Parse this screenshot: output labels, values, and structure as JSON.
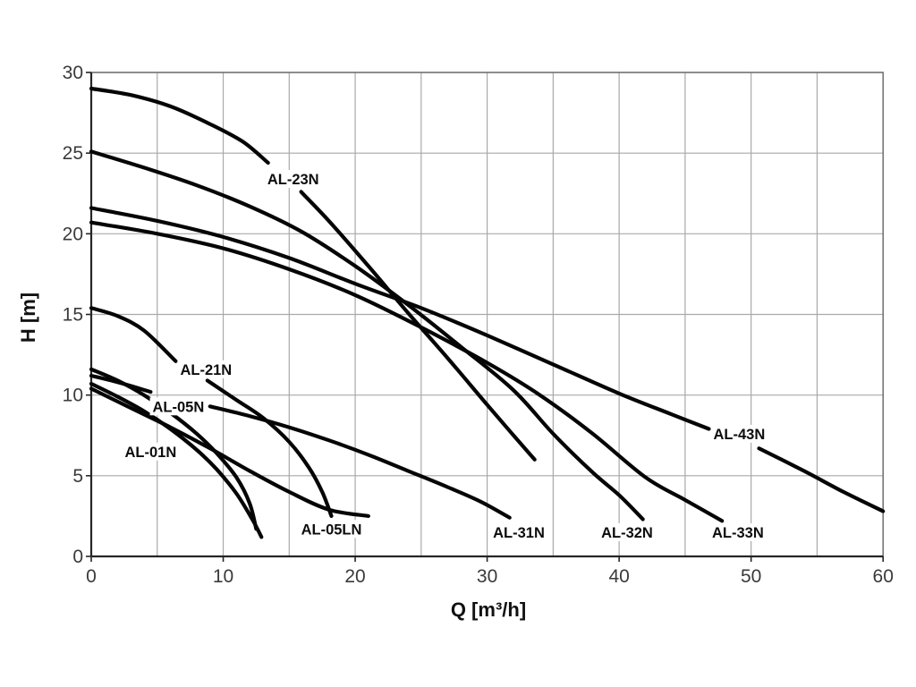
{
  "chart_data": {
    "type": "line",
    "title": "",
    "xlabel": "Q [m³/h]",
    "ylabel": "H [m]",
    "xlim": [
      0,
      60
    ],
    "ylim": [
      0,
      30
    ],
    "x_major_ticks": [
      0,
      10,
      20,
      30,
      40,
      50,
      60
    ],
    "y_major_ticks": [
      0,
      5,
      10,
      15,
      20,
      25,
      30
    ],
    "x_gridline_step": 5,
    "y_gridline_step": 5,
    "grid": "on",
    "legend": "none (inline curve labels)",
    "series": [
      {
        "name": "AL-23N",
        "label_at": {
          "q": 15.3,
          "h": 23.4
        },
        "segments": [
          [
            [
              0,
              29
            ],
            [
              3,
              28.6
            ],
            [
              6,
              27.9
            ],
            [
              9,
              26.8
            ],
            [
              11.5,
              25.7
            ],
            [
              13.4,
              24.4
            ]
          ],
          [
            [
              15.9,
              22.6
            ],
            [
              18,
              20.8
            ],
            [
              21,
              18.0
            ],
            [
              24,
              15.1
            ],
            [
              27,
              12.3
            ],
            [
              30,
              9.4
            ],
            [
              32,
              7.5
            ],
            [
              33.6,
              6.0
            ]
          ]
        ]
      },
      {
        "name": "AL-32N",
        "label_at": {
          "q": 40.6,
          "h": 1.5
        },
        "segments": [
          [
            [
              0,
              25.1
            ],
            [
              4,
              24.1
            ],
            [
              8,
              23.0
            ],
            [
              12,
              21.7
            ],
            [
              16,
              20.1
            ],
            [
              20,
              18.0
            ],
            [
              24,
              15.6
            ],
            [
              28,
              13.0
            ],
            [
              32,
              10.3
            ],
            [
              35,
              7.6
            ],
            [
              38,
              5.2
            ],
            [
              40,
              3.8
            ],
            [
              41.8,
              2.3
            ]
          ]
        ]
      },
      {
        "name": "AL-43N",
        "label_at": {
          "q": 49.1,
          "h": 7.6
        },
        "segments": [
          [
            [
              0,
              21.6
            ],
            [
              5,
              20.8
            ],
            [
              10,
              19.8
            ],
            [
              15,
              18.5
            ],
            [
              20,
              16.9
            ],
            [
              25,
              15.4
            ],
            [
              30,
              13.7
            ],
            [
              35,
              11.9
            ],
            [
              40,
              10.1
            ],
            [
              44,
              8.8
            ],
            [
              46.8,
              7.9
            ]
          ],
          [
            [
              50.6,
              6.7
            ],
            [
              54,
              5.3
            ],
            [
              57,
              4.0
            ],
            [
              60,
              2.8
            ]
          ]
        ]
      },
      {
        "name": "AL-33N",
        "label_at": {
          "q": 49.0,
          "h": 1.5
        },
        "segments": [
          [
            [
              0,
              20.7
            ],
            [
              5,
              20.0
            ],
            [
              10,
              19.1
            ],
            [
              15,
              17.8
            ],
            [
              20,
              16.2
            ],
            [
              25,
              14.2
            ],
            [
              30,
              12.0
            ],
            [
              34,
              10.0
            ],
            [
              38,
              7.6
            ],
            [
              42,
              4.9
            ],
            [
              45,
              3.5
            ],
            [
              47.8,
              2.2
            ]
          ]
        ]
      },
      {
        "name": "AL-21N",
        "label_at": {
          "q": 8.7,
          "h": 11.6
        },
        "segments": [
          [
            [
              0,
              15.4
            ],
            [
              2,
              14.9
            ],
            [
              4,
              14.0
            ],
            [
              6.4,
              12.1
            ]
          ],
          [
            [
              8.8,
              10.9
            ],
            [
              11,
              9.7
            ],
            [
              13,
              8.6
            ],
            [
              15,
              7.1
            ],
            [
              16.5,
              5.5
            ],
            [
              17.5,
              4.0
            ],
            [
              18.2,
              2.5
            ]
          ]
        ]
      },
      {
        "name": "AL-31N",
        "label_at": {
          "q": 32.4,
          "h": 1.5
        },
        "segments": [
          [
            [
              0,
              11.2
            ],
            [
              2,
              10.8
            ],
            [
              4.5,
              10.2
            ]
          ],
          [
            [
              9,
              9.3
            ],
            [
              12,
              8.7
            ],
            [
              15,
              8.0
            ],
            [
              18,
              7.2
            ],
            [
              21,
              6.3
            ],
            [
              24,
              5.3
            ],
            [
              27,
              4.3
            ],
            [
              29.5,
              3.4
            ],
            [
              31.7,
              2.4
            ]
          ]
        ]
      },
      {
        "name": "AL-05N",
        "label_at": {
          "q": 6.6,
          "h": 9.3
        },
        "segments": [
          [
            [
              0,
              11.6
            ],
            [
              2,
              10.9
            ],
            [
              4,
              10.0
            ],
            [
              6,
              8.9
            ],
            [
              8,
              7.6
            ],
            [
              9.5,
              6.4
            ],
            [
              11,
              4.9
            ],
            [
              12,
              3.3
            ],
            [
              12.5,
              1.7
            ]
          ]
        ]
      },
      {
        "name": "AL-01N",
        "label_at": {
          "q": 4.5,
          "h": 6.5
        },
        "segments": [
          [
            [
              0,
              10.7
            ],
            [
              2,
              9.9
            ],
            [
              4,
              9.0
            ],
            [
              6,
              7.9
            ],
            [
              8,
              6.6
            ],
            [
              9.5,
              5.4
            ],
            [
              11,
              3.9
            ],
            [
              12.2,
              2.3
            ],
            [
              12.9,
              1.2
            ]
          ]
        ]
      },
      {
        "name": "AL-05LN",
        "label_at": {
          "q": 18.2,
          "h": 1.7
        },
        "segments": [
          [
            [
              0,
              10.4
            ],
            [
              3,
              9.2
            ],
            [
              6,
              8.0
            ],
            [
              9,
              6.7
            ],
            [
              12,
              5.3
            ],
            [
              15,
              4.0
            ],
            [
              18,
              2.9
            ],
            [
              21,
              2.5
            ]
          ]
        ]
      }
    ]
  },
  "styles": {
    "background": "#ffffff",
    "curve_color": "#050505",
    "grid_color": "#a9a9a9",
    "frame_color": "#6f6f6f",
    "axis_color": "#262626",
    "tick_text_color": "#3a3a3a",
    "curve_label_color": "#0d0d0d"
  }
}
